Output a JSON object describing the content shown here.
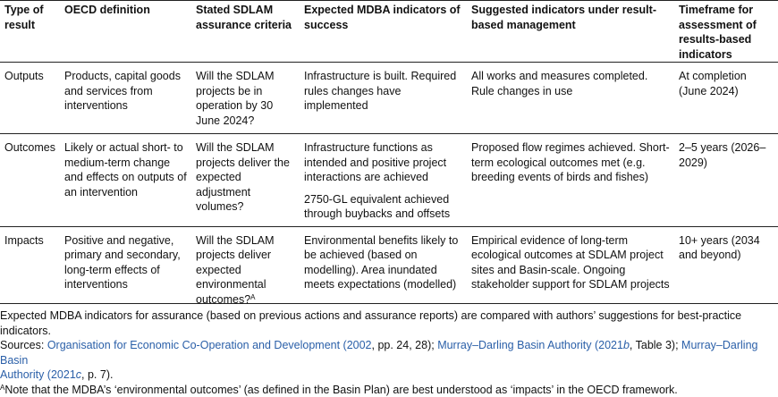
{
  "headers": [
    "Type of result",
    "OECD definition",
    "Stated SDLAM assurance criteria",
    "Expected MDBA indicators of success",
    "Suggested indicators under result-based management",
    "Timeframe for assessment of results-based indicators"
  ],
  "rows": [
    {
      "type": "Outputs",
      "oecd": "Products, capital goods and services from interventions",
      "criteria": "Will the SDLAM projects be in operation by 30 June 2024?",
      "criteria_sup": "",
      "mdba": [
        "Infrastructure is built. Required rules changes have implemented"
      ],
      "suggested": "All works and measures completed. Rule changes in use",
      "timeframe": "At completion (June 2024)"
    },
    {
      "type": "Outcomes",
      "oecd": "Likely or actual short- to medium-term change and effects on outputs of an intervention",
      "criteria": "Will the SDLAM projects deliver the expected adjustment volumes?",
      "criteria_sup": "",
      "mdba": [
        "Infrastructure functions as intended and positive project interactions are achieved",
        "2750-GL equivalent achieved through buybacks and offsets"
      ],
      "suggested": "Proposed flow regimes achieved. Short-term ecological outcomes met (e.g. breeding events of birds and fishes)",
      "timeframe": "2–5 years (2026–2029)"
    },
    {
      "type": "Impacts",
      "oecd": "Positive and negative, primary and secondary, long-term effects of interventions",
      "criteria": "Will the SDLAM projects deliver expected environmental outcomes?",
      "criteria_sup": "A",
      "mdba": [
        "Environmental benefits likely to be achieved (based on modelling). Area inundated meets expectations (modelled)"
      ],
      "suggested": "Empirical evidence of long-term ecological outcomes at SDLAM project sites and Basin-scale. Ongoing stakeholder support for SDLAM projects",
      "timeframe": "10+ years (2034 and beyond)"
    }
  ],
  "footnote": {
    "line1": "Expected MDBA indicators for assurance (based on previous actions and assurance reports) are compared with authors’ suggestions for best-practice indicators.",
    "sources_label": "Sources: ",
    "src1": "Organisation for Economic Co-Operation and Development (2002",
    "src1_rest": ", pp. 24, 28); ",
    "src2a": "Murray–Darling Basin Authority (2021",
    "src2_italic": "b",
    "src2b": ", Table 3); ",
    "src3a": "Murray–Darling Basin",
    "src3b": "Authority (2021",
    "src3_italic": "c",
    "src3c": ", p. 7).",
    "note_sup": "A",
    "note_text": "Note that the MDBA’s ‘environmental outcomes’ (as defined in the Basin Plan) are best understood as ‘impacts’ in the OECD framework."
  }
}
